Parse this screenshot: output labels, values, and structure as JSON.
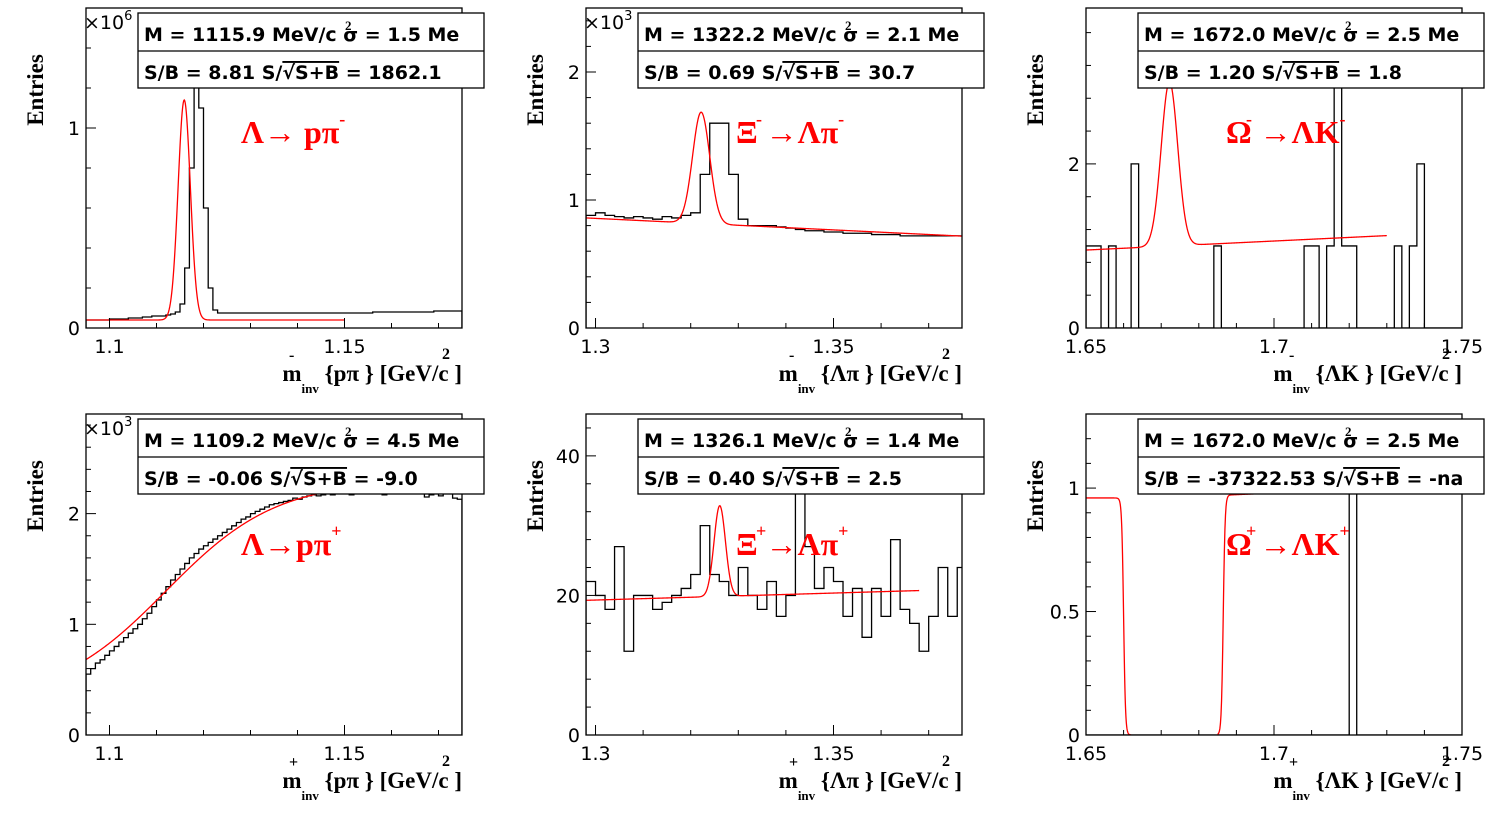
{
  "panels_order": [
    "lambda",
    "xi",
    "omega",
    "antilambda",
    "antixi",
    "antiomega"
  ],
  "chart_data": [
    {
      "id": "lambda",
      "type": "line",
      "ylabel": "Entries",
      "xlabel": {
        "main": "m",
        "sub": "inv",
        "rest": " {pπ } [GeV/c ]",
        "sup_particle": "-",
        "sup_units": "2"
      },
      "stats": {
        "line1": "M = 1115.9 MeV/c  σ = 1.5 Me",
        "line1_sup": "2",
        "line2_pre": "S/B = 8.81   S/",
        "line2_rad": "S+B",
        "line2_post": " = 1862.1"
      },
      "decay": {
        "text": "Λ→ pπ",
        "sup": "-"
      },
      "multiplier": {
        "text": "×10",
        "exp": "6"
      },
      "xlim": [
        1.095,
        1.175
      ],
      "ylim": [
        0,
        1.6
      ],
      "xticks": [
        1.1,
        1.15
      ],
      "xtick_labels": [
        "1.1",
        "1.15"
      ],
      "yticks": [
        0,
        1
      ],
      "ytick_labels": [
        "0",
        "1"
      ],
      "histogram": {
        "xmin": 1.095,
        "bin_width": 0.001,
        "values": [
          0.04,
          0.04,
          0.04,
          0.04,
          0.04,
          0.045,
          0.045,
          0.045,
          0.045,
          0.05,
          0.05,
          0.05,
          0.055,
          0.055,
          0.06,
          0.06,
          0.06,
          0.065,
          0.07,
          0.08,
          0.12,
          0.3,
          0.8,
          1.25,
          1.1,
          0.6,
          0.2,
          0.09,
          0.075,
          0.075,
          0.075,
          0.075,
          0.075,
          0.075,
          0.075,
          0.075,
          0.075,
          0.075,
          0.075,
          0.075,
          0.075,
          0.075,
          0.075,
          0.075,
          0.075,
          0.075,
          0.075,
          0.075,
          0.075,
          0.075,
          0.075,
          0.075,
          0.075,
          0.075,
          0.075,
          0.075,
          0.075,
          0.075,
          0.075,
          0.075,
          0.075,
          0.08,
          0.08,
          0.08,
          0.08,
          0.08,
          0.08,
          0.08,
          0.08,
          0.08,
          0.08,
          0.08,
          0.08,
          0.08,
          0.085,
          0.085,
          0.085,
          0.085,
          0.085,
          0.085
        ]
      },
      "fit": {
        "xmin": 1.095,
        "xmax": 1.15,
        "peak_mean": 1.1159,
        "peak_sigma": 0.0013,
        "peak_amp": 1.1,
        "bg_a": 0.04,
        "bg_b": 0.00082
      }
    },
    {
      "id": "xi",
      "type": "line",
      "ylabel": "Entries",
      "xlabel": {
        "main": "m",
        "sub": "inv",
        "rest": " {Λπ } [GeV/c ]",
        "sup_particle": "-",
        "sup_units": "2"
      },
      "stats": {
        "line1": "M = 1322.2 MeV/c  σ = 2.1 Me",
        "line1_sup": "2",
        "line2_pre": "S/B = 0.69   S/",
        "line2_rad": "S+B",
        "line2_post": " = 30.7"
      },
      "decay": {
        "text": "Ξ →Λπ",
        "sup1": "-",
        "sup2": "-"
      },
      "multiplier": {
        "text": "×10",
        "exp": "3"
      },
      "xlim": [
        1.298,
        1.377
      ],
      "ylim": [
        0,
        2.5
      ],
      "xticks": [
        1.3,
        1.35
      ],
      "xtick_labels": [
        "1.3",
        "1.35"
      ],
      "yticks": [
        0,
        1,
        2
      ],
      "ytick_labels": [
        "0",
        "1",
        "2"
      ],
      "histogram": {
        "xmin": 1.298,
        "bin_width": 0.002,
        "values": [
          0.88,
          0.9,
          0.88,
          0.87,
          0.86,
          0.87,
          0.86,
          0.85,
          0.87,
          0.86,
          0.88,
          0.9,
          1.2,
          1.6,
          1.6,
          1.2,
          0.85,
          0.8,
          0.8,
          0.8,
          0.79,
          0.78,
          0.77,
          0.76,
          0.76,
          0.75,
          0.75,
          0.74,
          0.74,
          0.74,
          0.73,
          0.73,
          0.73,
          0.72,
          0.72,
          0.72,
          0.72,
          0.72,
          0.72,
          0.72
        ]
      },
      "fit": {
        "xmin": 1.298,
        "xmax": 1.377,
        "peak_mean": 1.3222,
        "peak_sigma": 0.0018,
        "peak_amp": 0.87,
        "bg_a": 0.86,
        "bg_b": -1.8
      }
    },
    {
      "id": "omega",
      "type": "line",
      "ylabel": "Entries",
      "xlabel": {
        "main": "m",
        "sub": "inv",
        "rest": " {ΛK } [GeV/c ]",
        "sup_particle": "-",
        "sup_units": "2"
      },
      "stats": {
        "line1": "M = 1672.0 MeV/c  σ = 2.5 Me",
        "line1_sup": "2",
        "line2_pre": "S/B = 1.20   S/",
        "line2_rad": "S+B",
        "line2_post": " = 1.8"
      },
      "decay": {
        "text": "Ω →ΛK",
        "sup1": "-",
        "sup2": "-"
      },
      "multiplier": {
        "text": "",
        "exp": ""
      },
      "xlim": [
        1.65,
        1.75
      ],
      "ylim": [
        0,
        3.9
      ],
      "xticks": [
        1.65,
        1.7,
        1.75
      ],
      "xtick_labels": [
        "1.65",
        "1.7",
        "1.75"
      ],
      "yticks": [
        0,
        2
      ],
      "ytick_labels": [
        "0",
        "2"
      ],
      "histogram": {
        "xmin": 1.65,
        "bin_width": 0.002,
        "values": [
          1,
          1,
          0,
          1,
          0,
          0,
          2,
          0,
          0,
          0,
          0,
          0,
          0,
          0,
          0,
          0,
          0,
          1,
          0,
          0,
          0,
          0,
          0,
          0,
          0,
          0,
          0,
          0,
          0,
          1,
          1,
          0,
          1,
          3,
          1,
          1,
          0,
          0,
          0,
          0,
          0,
          1,
          0,
          1,
          2,
          0,
          0,
          0,
          0,
          0
        ]
      },
      "fit": {
        "xmin": 1.65,
        "xmax": 1.73,
        "peak_mean": 1.6722,
        "peak_sigma": 0.0022,
        "peak_amp": 2.0,
        "bg_a": 0.95,
        "bg_b": 2.2
      }
    },
    {
      "id": "antilambda",
      "type": "line",
      "ylabel": "Entries",
      "xlabel": {
        "main": "m",
        "sub": "inv",
        "rest": " {pπ } [GeV/c ]",
        "sup_particle": "+",
        "sup_units": "2"
      },
      "stats": {
        "line1": "M = 1109.2 MeV/c  σ = 4.5 Me",
        "line1_sup": "2",
        "line2_pre": "S/B = -0.06   S/",
        "line2_rad": "S+B",
        "line2_post": " = -9.0"
      },
      "decay": {
        "text": "Λ→pπ",
        "sup": "+"
      },
      "multiplier": {
        "text": "×10",
        "exp": "3"
      },
      "xlim": [
        1.095,
        1.175
      ],
      "ylim": [
        0,
        2.9
      ],
      "xticks": [
        1.1,
        1.15
      ],
      "xtick_labels": [
        "1.1",
        "1.15"
      ],
      "yticks": [
        0,
        1,
        2
      ],
      "ytick_labels": [
        "0",
        "1",
        "2"
      ],
      "histogram": {
        "xmin": 1.095,
        "bin_width": 0.001,
        "values": [
          0.55,
          0.6,
          0.65,
          0.68,
          0.72,
          0.76,
          0.8,
          0.84,
          0.88,
          0.92,
          0.96,
          1.0,
          1.05,
          1.1,
          1.16,
          1.22,
          1.28,
          1.34,
          1.4,
          1.45,
          1.5,
          1.55,
          1.6,
          1.64,
          1.68,
          1.71,
          1.74,
          1.77,
          1.8,
          1.83,
          1.86,
          1.89,
          1.92,
          1.95,
          1.97,
          2.0,
          2.02,
          2.04,
          2.06,
          2.08,
          2.09,
          2.1,
          2.11,
          2.12,
          2.14,
          2.13,
          2.15,
          2.16,
          2.17,
          2.16,
          2.17,
          2.18,
          2.17,
          2.18,
          2.19,
          2.18,
          2.17,
          2.19,
          2.2,
          2.18,
          2.19,
          2.21,
          2.19,
          2.17,
          2.2,
          2.22,
          2.18,
          2.21,
          2.2,
          2.23,
          2.19,
          2.2,
          2.15,
          2.17,
          2.21,
          2.16,
          2.2,
          2.18,
          2.14,
          2.13
        ]
      },
      "fit": {
        "xmin": 1.095,
        "xmax": 1.15,
        "logistic": {
          "lo": 0.3,
          "hi": 2.3,
          "x0": 1.112,
          "k": 85
        }
      }
    },
    {
      "id": "antixi",
      "type": "line",
      "ylabel": "Entries",
      "xlabel": {
        "main": "m",
        "sub": "inv",
        "rest": " {Λπ } [GeV/c ]",
        "sup_particle": "+",
        "sup_units": "2"
      },
      "stats": {
        "line1": "M = 1326.1 MeV/c  σ = 1.4 Me",
        "line1_sup": "2",
        "line2_pre": "S/B = 0.40   S/",
        "line2_rad": "S+B",
        "line2_post": " = 2.5"
      },
      "decay": {
        "text": "Ξ →Λπ",
        "sup1": "+",
        "sup2": "+"
      },
      "multiplier": {
        "text": "",
        "exp": ""
      },
      "xlim": [
        1.298,
        1.377
      ],
      "ylim": [
        0,
        46
      ],
      "xticks": [
        1.3,
        1.35
      ],
      "xtick_labels": [
        "1.3",
        "1.35"
      ],
      "yticks": [
        0,
        20,
        40
      ],
      "ytick_labels": [
        "0",
        "20",
        "40"
      ],
      "histogram": {
        "xmin": 1.298,
        "bin_width": 0.002,
        "values": [
          22,
          20,
          18,
          27,
          12,
          20,
          20,
          18,
          19,
          20,
          21,
          23,
          30,
          23,
          22,
          20,
          24,
          20,
          18,
          22,
          17,
          20,
          35,
          27,
          21,
          24,
          22,
          17,
          21,
          14,
          21,
          17,
          28,
          18,
          16,
          12,
          17,
          24,
          17,
          24
        ]
      },
      "fit": {
        "xmin": 1.298,
        "xmax": 1.368,
        "peak_mean": 1.3261,
        "peak_sigma": 0.0012,
        "peak_amp": 13.0,
        "bg_a": 19.3,
        "bg_b": 20.0
      }
    },
    {
      "id": "antiomega",
      "type": "line",
      "ylabel": "Entries",
      "xlabel": {
        "main": "m",
        "sub": "inv",
        "rest": " {ΛK } [GeV/c ]",
        "sup_particle": "+",
        "sup_units": "2"
      },
      "stats": {
        "line1": "M = 1672.0 MeV/c  σ = 2.5 Me",
        "line1_sup": "2",
        "line2_pre": "S/B = -37322.53   S/",
        "line2_rad": "S+B",
        "line2_post": " = -na"
      },
      "decay": {
        "text": "Ω →ΛK",
        "sup1": "+",
        "sup2": "+"
      },
      "multiplier": {
        "text": "",
        "exp": ""
      },
      "xlim": [
        1.65,
        1.75
      ],
      "ylim": [
        0,
        1.3
      ],
      "xticks": [
        1.65,
        1.7,
        1.75
      ],
      "xtick_labels": [
        "1.65",
        "1.7",
        "1.75"
      ],
      "yticks": [
        0,
        0.5,
        1
      ],
      "ytick_labels": [
        "0",
        "0.5",
        "1"
      ],
      "histogram": {
        "xmin": 1.65,
        "bin_width": 0.002,
        "values": [
          0,
          0,
          0,
          0,
          0,
          0,
          0,
          0,
          0,
          0,
          0,
          0,
          0,
          0,
          0,
          0,
          0,
          0,
          0,
          0,
          0,
          0,
          0,
          0,
          0,
          0,
          0,
          0,
          0,
          0,
          0,
          0,
          0,
          0,
          0,
          1,
          0,
          0,
          0,
          0,
          0,
          0,
          0,
          0,
          0,
          0,
          0,
          0,
          0,
          0
        ]
      },
      "fit": {
        "xmin": 1.65,
        "xmax": 1.73,
        "segments": [
          {
            "x0": 1.65,
            "x1": 1.662,
            "y_flat": 0.96,
            "edge": "fall"
          },
          {
            "x0": 1.685,
            "x1": 1.73,
            "y_flat": 0.97,
            "y_end": 1.0,
            "edge": "rise"
          }
        ]
      }
    }
  ]
}
